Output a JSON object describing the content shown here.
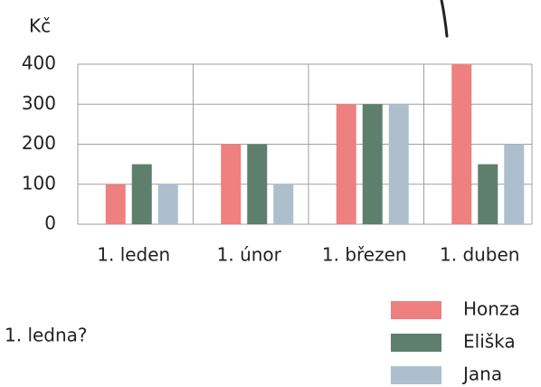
{
  "chart_data": {
    "type": "bar",
    "ylabel": "Kč",
    "annotation": "1. ledna?",
    "categories": [
      "1. leden",
      "1. únor",
      "1. březen",
      "1. duben"
    ],
    "series": [
      {
        "name": "Honza",
        "color": "#ee8080",
        "values": [
          100,
          200,
          300,
          400
        ]
      },
      {
        "name": "Eliška",
        "color": "#5e7f6e",
        "values": [
          150,
          200,
          300,
          150
        ]
      },
      {
        "name": "Jana",
        "color": "#adbfcd",
        "values": [
          100,
          100,
          300,
          200
        ]
      }
    ],
    "ylim": [
      0,
      400
    ],
    "yticks": [
      0,
      100,
      200,
      300,
      400
    ],
    "grid": true,
    "legend": "bottom-right"
  }
}
